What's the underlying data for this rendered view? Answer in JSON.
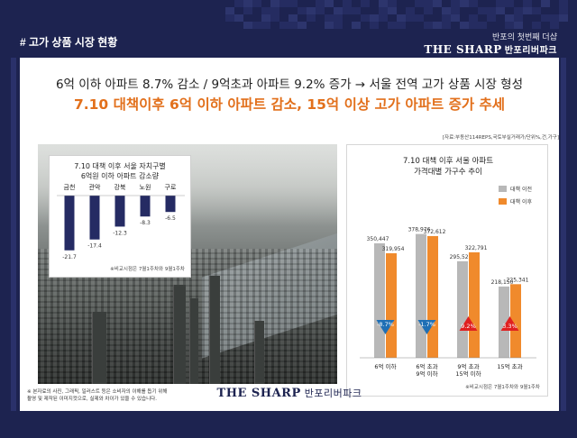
{
  "header": {
    "section_title": "# 고가 상품 시장 현황",
    "brand_sub": "반포의 첫번째 더샵",
    "brand_main": "THE SHARP",
    "brand_kr": "반포리버파크"
  },
  "headline": {
    "line1": "6억 이하 아파트 8.7% 감소 / 9억초과 아파트 9.2% 증가 → 서울 전역 고가 상품 시장 형성",
    "line2": "7.10 대책이후 6억 이하 아파트 감소, 15억 이상 고가 아파트 증가 추세"
  },
  "colors": {
    "navy": "#1d2350",
    "orange": "#e2701c",
    "bar_before": "#b8b8b8",
    "bar_after": "#f08a2c",
    "bar_navy": "#252b63",
    "arrow_down": "#1f6fb5",
    "arrow_up": "#e02020"
  },
  "chart_data": [
    {
      "type": "bar",
      "title": "7.10 대책 이후 서울 자치구별\n6억원 이하 아파트 감소량",
      "title_line1": "7.10 대책 이후 서울 자치구별",
      "title_line2": "6억원 이하 아파트 감소량",
      "categories": [
        "금천",
        "관악",
        "강북",
        "노원",
        "구로"
      ],
      "values": [
        -21.7,
        -17.4,
        -12.3,
        -8.3,
        -6.5
      ],
      "value_labels": [
        "-21.7",
        "-17.4",
        "-12.3",
        "-8.3",
        "-6.5"
      ],
      "note": "※비교시점은 7월1주차와 9월1주차"
    },
    {
      "type": "bar",
      "title_line1": "7.10 대책 이후 서울 아파트",
      "title_line2": "가격대별 가구수 추이",
      "source": "[자료:부동산114REPS,국토부실거래가/단위%,건,가구]",
      "categories": [
        "6억 이하",
        "6억 초과 9억 이하",
        "9억 초과 15억 이하",
        "15억 초과"
      ],
      "category_lines": [
        [
          "6억 이하"
        ],
        [
          "6억 초과",
          "9억 이하"
        ],
        [
          "9억 초과",
          "15억 이하"
        ],
        [
          "15억 초과"
        ]
      ],
      "series": [
        {
          "name": "대책 이전",
          "values": [
            350447,
            378976,
            295520,
            218150
          ],
          "labels": [
            "350,447",
            "378,976",
            "295,520",
            "218,150"
          ]
        },
        {
          "name": "대책 이후",
          "values": [
            319954,
            372612,
            322791,
            225341
          ],
          "labels": [
            "319,954",
            "372,612",
            "322,791",
            "225,341"
          ]
        }
      ],
      "changes": [
        "-8.7%",
        "-1.7%",
        "9.2%",
        "3.3%"
      ],
      "change_direction": [
        "down",
        "down",
        "up",
        "up"
      ],
      "ylim": [
        0,
        400000
      ],
      "note": "※비교시점은 7월1주차와 9월1주차"
    }
  ],
  "footer": {
    "footnote": "※ 본자료의 사진, 그래픽, 일러스트 등은 소비자의 이해를 돕기 위해 촬영 및 제작된 이미지컷으로, 실제와 차이가 있을 수 있습니다.",
    "brand_main": "THE SHARP",
    "brand_kr": "반포리버파크"
  }
}
